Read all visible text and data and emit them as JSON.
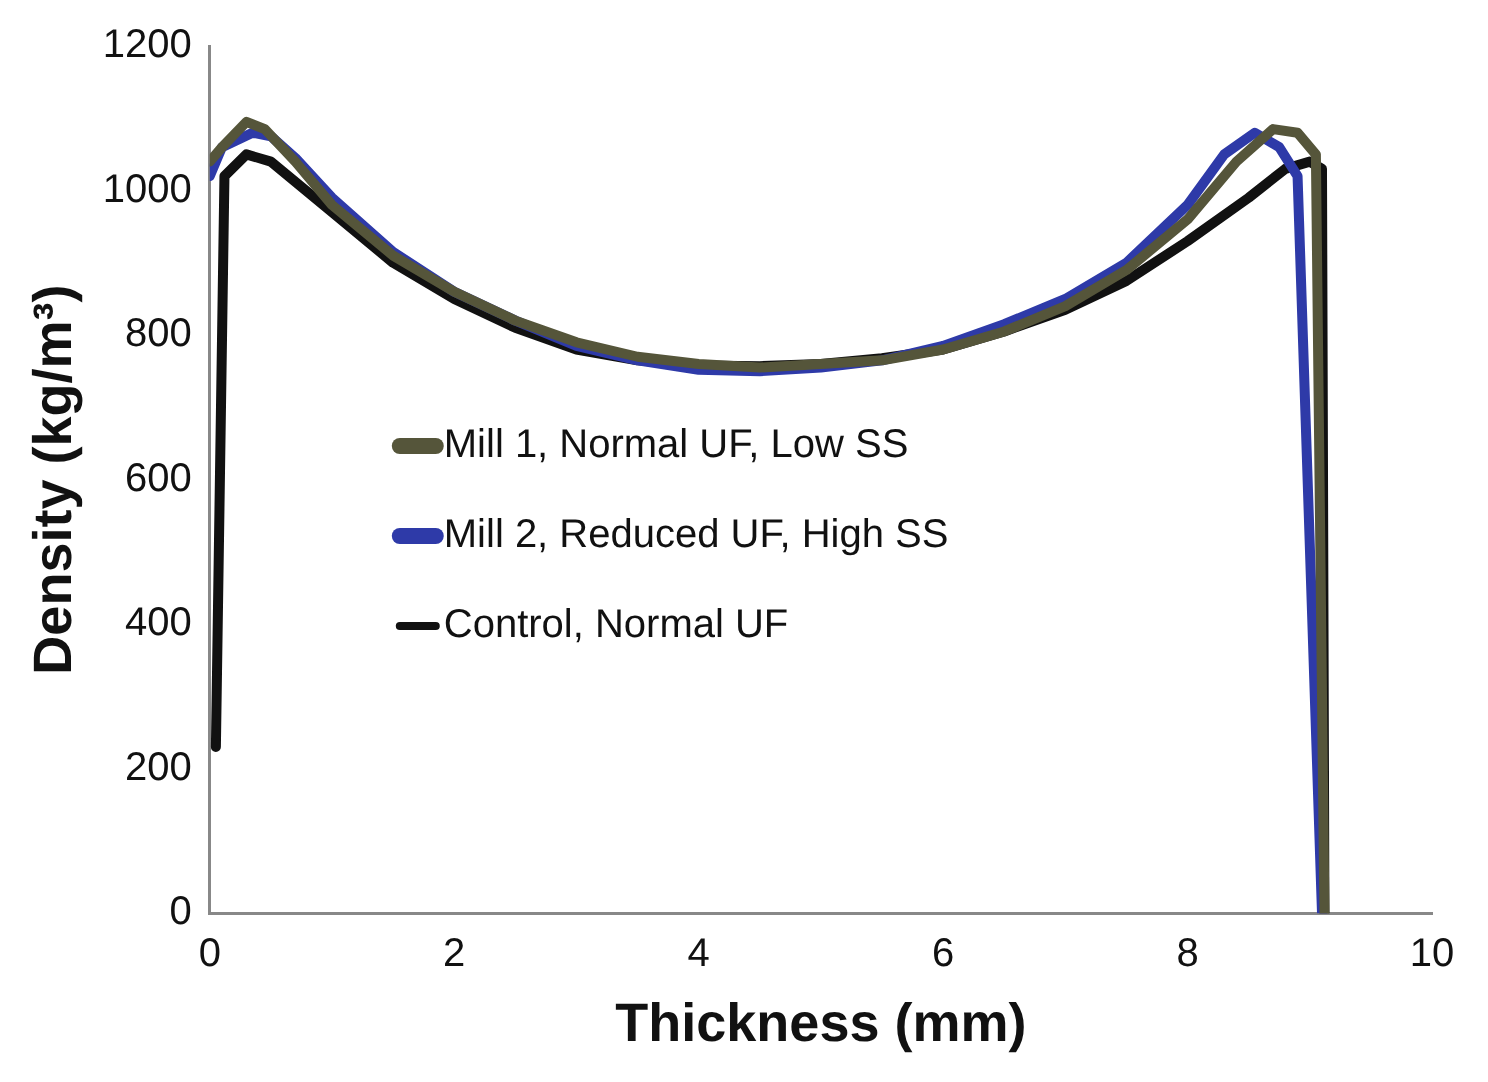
{
  "chart_data": {
    "type": "line",
    "xlabel": "Thickness (mm)",
    "ylabel": "Density (kg/m³)",
    "xlim": [
      0,
      10
    ],
    "xticks": [
      0,
      2,
      4,
      6,
      8,
      10
    ],
    "ylim": [
      0,
      1200
    ],
    "yticks": [
      0,
      200,
      400,
      600,
      800,
      1000,
      1200
    ],
    "grid": false,
    "legend": "left",
    "marker": "none",
    "line_style": "solid",
    "series": [
      {
        "name": "Mill 1, Normal UF, Low SS",
        "color": "#55553a",
        "x": [
          0,
          0.1,
          0.3,
          0.45,
          0.7,
          1,
          1.5,
          2,
          2.5,
          3,
          3.5,
          4,
          4.5,
          5,
          5.5,
          6,
          6.5,
          7,
          7.5,
          8,
          8.4,
          8.7,
          8.9,
          9.05,
          9.12
        ],
        "values": [
          1040,
          1060,
          1095,
          1085,
          1040,
          980,
          910,
          860,
          820,
          790,
          770,
          760,
          755,
          760,
          765,
          780,
          805,
          840,
          890,
          960,
          1040,
          1085,
          1080,
          1050,
          0
        ]
      },
      {
        "name": "Mill 2, Reduced UF, High SS",
        "color": "#2e3aa8",
        "x": [
          0,
          0.1,
          0.35,
          0.5,
          0.7,
          1,
          1.5,
          2,
          2.5,
          3,
          3.5,
          4,
          4.5,
          5,
          5.5,
          6,
          6.5,
          7,
          7.5,
          8,
          8.3,
          8.55,
          8.75,
          8.9,
          9.1
        ],
        "values": [
          1020,
          1060,
          1080,
          1075,
          1045,
          990,
          915,
          860,
          820,
          785,
          765,
          752,
          750,
          755,
          765,
          785,
          815,
          850,
          900,
          980,
          1050,
          1080,
          1060,
          1020,
          0
        ]
      },
      {
        "name": "Control, Normal UF",
        "color": "#111111",
        "x": [
          0.05,
          0.12,
          0.3,
          0.5,
          1,
          1.5,
          2,
          2.5,
          3,
          3.5,
          4,
          4.5,
          5,
          5.5,
          6,
          6.5,
          7,
          7.5,
          8,
          8.5,
          8.8,
          9,
          9.1,
          9.12
        ],
        "values": [
          230,
          1020,
          1050,
          1040,
          970,
          900,
          850,
          810,
          780,
          765,
          758,
          757,
          760,
          768,
          780,
          805,
          835,
          875,
          930,
          990,
          1030,
          1040,
          1030,
          0
        ]
      }
    ]
  }
}
